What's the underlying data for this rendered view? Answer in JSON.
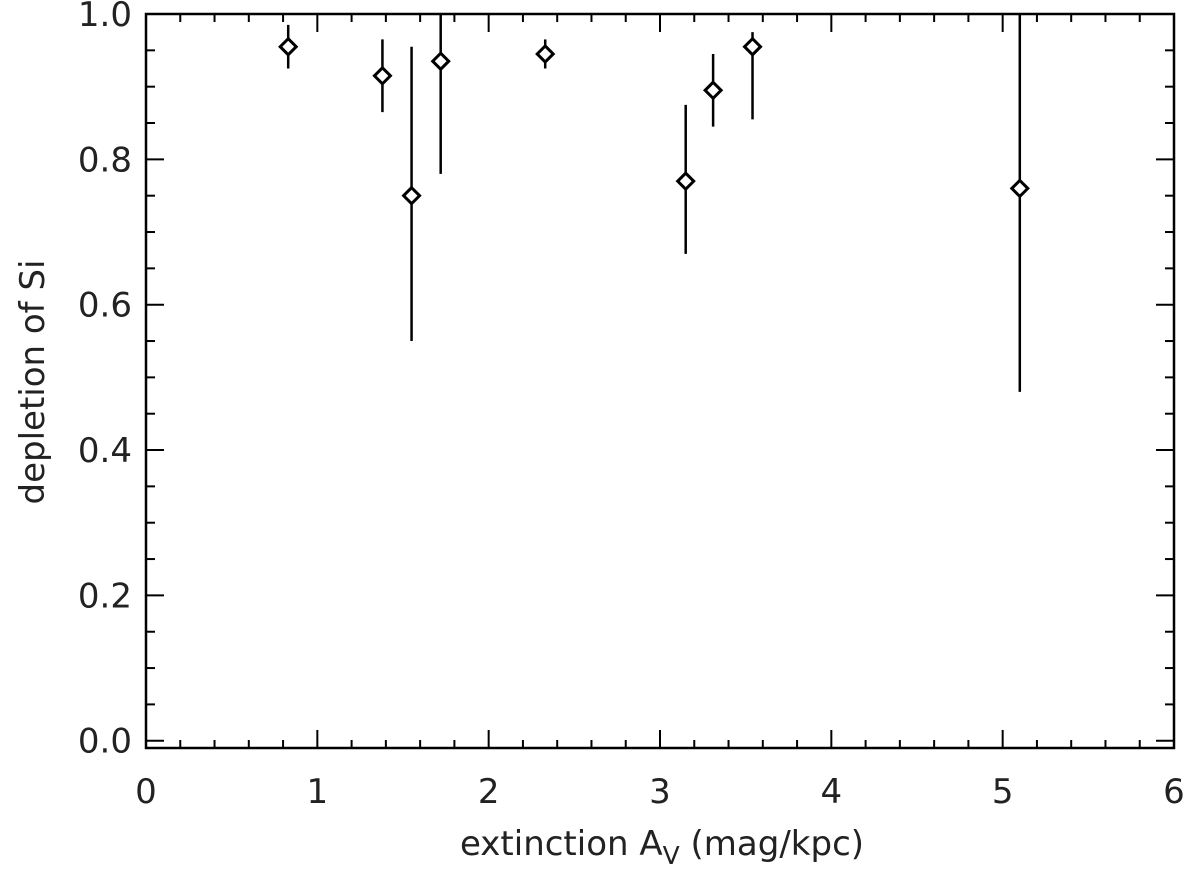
{
  "chart_data": {
    "type": "scatter",
    "xlabel": {
      "main": "extinction A",
      "subscript": "V",
      "suffix": " (mag/kpc)"
    },
    "ylabel": "depletion of Si",
    "xlim": [
      0,
      6
    ],
    "ylim": [
      -0.01,
      1.0
    ],
    "x_ticks": [
      "0",
      "1",
      "2",
      "3",
      "4",
      "5",
      "6"
    ],
    "y_ticks": [
      "0.0",
      "0.2",
      "0.4",
      "0.6",
      "0.8",
      "1.0"
    ],
    "x_tick_values": [
      0,
      1,
      2,
      3,
      4,
      5,
      6
    ],
    "y_tick_values": [
      0.0,
      0.2,
      0.4,
      0.6,
      0.8,
      1.0
    ],
    "x_minor_step": 0.2,
    "y_minor_step": 0.05,
    "grid": false,
    "legend": "none",
    "marker": "diamond",
    "points": [
      {
        "x": 0.83,
        "y": 0.955,
        "ylow": 0.925,
        "yhigh": 0.985
      },
      {
        "x": 1.38,
        "y": 0.915,
        "ylow": 0.865,
        "yhigh": 0.965
      },
      {
        "x": 1.55,
        "y": 0.75,
        "ylow": 0.55,
        "yhigh": 0.955
      },
      {
        "x": 1.72,
        "y": 0.935,
        "ylow": 0.78,
        "yhigh": 1.0
      },
      {
        "x": 2.33,
        "y": 0.945,
        "ylow": 0.925,
        "yhigh": 0.965
      },
      {
        "x": 3.15,
        "y": 0.77,
        "ylow": 0.67,
        "yhigh": 0.875
      },
      {
        "x": 3.31,
        "y": 0.895,
        "ylow": 0.845,
        "yhigh": 0.945
      },
      {
        "x": 3.54,
        "y": 0.955,
        "ylow": 0.855,
        "yhigh": 0.975
      },
      {
        "x": 5.1,
        "y": 0.76,
        "ylow": 0.48,
        "yhigh": 1.0
      }
    ]
  }
}
